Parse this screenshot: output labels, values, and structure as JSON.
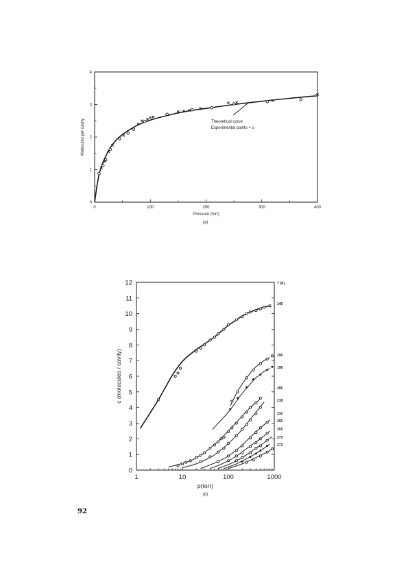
{
  "page": {
    "number": "92"
  },
  "chart_data": [
    {
      "type": "scatter",
      "title": "",
      "xlabel": "Pressure (torr)",
      "ylabel": "Molecules per cavity",
      "caption": "(a)",
      "xlim": [
        0,
        400
      ],
      "ylim": [
        0,
        4
      ],
      "xticks": [
        0,
        100,
        200,
        300,
        400
      ],
      "yticks": [
        0,
        1,
        2,
        3,
        4
      ],
      "legend": {
        "line1": "Theoretical curve",
        "line2": "Experimental points  × o"
      },
      "curve": {
        "x": [
          0,
          5,
          10,
          20,
          30,
          40,
          50,
          60,
          70,
          80,
          100,
          125,
          150,
          175,
          200,
          250,
          300,
          350,
          400
        ],
        "y": [
          0,
          0.58,
          0.98,
          1.42,
          1.72,
          1.93,
          2.08,
          2.2,
          2.3,
          2.39,
          2.52,
          2.64,
          2.74,
          2.82,
          2.88,
          3.0,
          3.1,
          3.19,
          3.27
        ]
      },
      "series": [
        {
          "name": "o",
          "x": [
            8,
            15,
            20,
            28,
            45,
            60,
            70,
            90,
            130,
            175,
            210,
            250,
            310,
            370,
            398
          ],
          "y": [
            0.88,
            1.12,
            1.3,
            1.62,
            1.95,
            2.12,
            2.24,
            2.48,
            2.7,
            2.84,
            2.9,
            3.02,
            3.09,
            3.15,
            3.28
          ]
        },
        {
          "name": "×",
          "x": [
            12,
            18,
            25,
            32,
            52,
            78,
            85,
            95,
            100,
            105,
            150,
            160,
            170,
            190,
            240,
            255,
            320,
            400
          ],
          "y": [
            1.05,
            1.25,
            1.55,
            1.75,
            2.05,
            2.4,
            2.5,
            2.55,
            2.6,
            2.62,
            2.78,
            2.8,
            2.82,
            2.88,
            3.05,
            3.06,
            3.12,
            3.3
          ]
        }
      ]
    },
    {
      "type": "line",
      "title": "",
      "xlabel": "p(torr)",
      "ylabel": "c (molecules / cavity)",
      "caption": "(b)",
      "xscale": "log",
      "xlim": [
        1,
        1000
      ],
      "ylim": [
        0,
        12
      ],
      "xticks": [
        1,
        10,
        100,
        1000
      ],
      "xtick_labels": [
        "1",
        "10",
        "100",
        "1000"
      ],
      "yticks": [
        0,
        1,
        2,
        3,
        4,
        5,
        6,
        7,
        8,
        9,
        10,
        11,
        12
      ],
      "legend_title": "T (K)",
      "series": [
        {
          "name": "145",
          "marker": "o",
          "x": [
            1.2,
            3,
            6,
            10,
            20,
            40,
            60,
            100,
            150,
            200,
            300,
            500,
            800
          ],
          "y": [
            2.65,
            4.5,
            6.05,
            6.95,
            7.7,
            8.3,
            8.7,
            9.25,
            9.6,
            9.85,
            10.1,
            10.35,
            10.5
          ],
          "points_x": [
            3,
            7,
            8,
            9,
            20,
            25,
            30,
            40,
            50,
            60,
            80,
            100,
            150,
            200,
            250,
            300,
            400,
            500,
            600,
            800
          ],
          "points_y": [
            4.5,
            6.0,
            6.2,
            6.5,
            7.6,
            7.8,
            8.0,
            8.3,
            8.5,
            8.7,
            9.0,
            9.3,
            9.6,
            9.8,
            10.0,
            10.1,
            10.2,
            10.3,
            10.4,
            10.5
          ]
        },
        {
          "name": "195",
          "marker": "o",
          "x": [
            110,
            150,
            200,
            300,
            400,
            600,
            800
          ],
          "y": [
            4.1,
            4.9,
            5.5,
            6.2,
            6.6,
            7.0,
            7.2
          ],
          "points_x": [
            120,
            160,
            250,
            350,
            500,
            700,
            900
          ],
          "points_y": [
            4.4,
            5.0,
            5.9,
            6.4,
            6.8,
            7.1,
            7.3
          ]
        },
        {
          "name": "198",
          "marker": "dot",
          "x": [
            45,
            70,
            100,
            150,
            200,
            300,
            400,
            600,
            800
          ],
          "y": [
            2.6,
            3.2,
            3.7,
            4.4,
            4.9,
            5.5,
            5.9,
            6.3,
            6.5
          ],
          "points_x": [
            110,
            160,
            250,
            350,
            500,
            700,
            900
          ],
          "points_y": [
            3.9,
            4.6,
            5.3,
            5.8,
            6.1,
            6.4,
            6.6
          ]
        },
        {
          "name": "206",
          "marker": "o",
          "x": [
            5,
            8,
            15,
            25,
            40,
            60,
            100,
            150,
            200,
            300,
            500
          ],
          "y": [
            0.2,
            0.35,
            0.6,
            0.95,
            1.4,
            1.85,
            2.5,
            3.05,
            3.45,
            4.0,
            4.55
          ],
          "points_x": [
            8,
            10,
            12,
            15,
            20,
            25,
            30,
            40,
            50,
            60,
            70,
            80,
            100,
            120,
            150,
            200,
            250,
            300,
            400,
            500
          ],
          "points_y": [
            0.3,
            0.4,
            0.5,
            0.6,
            0.8,
            0.95,
            1.1,
            1.4,
            1.6,
            1.8,
            2.0,
            2.1,
            2.45,
            2.7,
            3.0,
            3.4,
            3.7,
            4.0,
            4.3,
            4.6
          ]
        },
        {
          "name": "218",
          "marker": "o",
          "x": [
            10,
            20,
            40,
            60,
            100,
            150,
            200,
            300,
            400,
            600
          ],
          "y": [
            0.15,
            0.4,
            0.8,
            1.15,
            1.7,
            2.2,
            2.6,
            3.25,
            3.7,
            4.35
          ],
          "points_x": [
            25,
            40,
            60,
            80,
            100,
            150,
            200,
            250,
            300,
            400,
            500
          ],
          "points_y": [
            0.55,
            0.85,
            1.15,
            1.4,
            1.7,
            2.2,
            2.6,
            2.9,
            3.2,
            3.6,
            4.0
          ]
        },
        {
          "name": "232",
          "marker": "o",
          "x": [
            25,
            50,
            100,
            200,
            300,
            500,
            800
          ],
          "y": [
            0.1,
            0.45,
            0.9,
            1.6,
            2.1,
            2.7,
            3.2
          ],
          "points_x": [
            60,
            100,
            150,
            200,
            300,
            400,
            500,
            700
          ],
          "points_y": [
            0.55,
            0.9,
            1.25,
            1.55,
            2.05,
            2.4,
            2.7,
            3.05
          ]
        },
        {
          "name": "255",
          "marker": "o",
          "x": [
            40,
            80,
            150,
            300,
            500,
            800
          ],
          "y": [
            0.1,
            0.45,
            0.9,
            1.55,
            2.0,
            2.5
          ],
          "points_x": [
            100,
            150,
            200,
            300,
            400,
            500,
            700
          ],
          "points_y": [
            0.6,
            0.9,
            1.1,
            1.5,
            1.75,
            2.0,
            2.35
          ]
        },
        {
          "name": "255",
          "marker": "o",
          "x": [
            60,
            120,
            200,
            400,
            600,
            900
          ],
          "y": [
            0.1,
            0.45,
            0.8,
            1.4,
            1.75,
            2.15
          ],
          "points_x": [
            150,
            200,
            300,
            400,
            500,
            700
          ],
          "points_y": [
            0.6,
            0.8,
            1.1,
            1.4,
            1.55,
            1.9
          ]
        },
        {
          "name": "273",
          "marker": "dot",
          "x": [
            80,
            150,
            300,
            500,
            800
          ],
          "y": [
            0.1,
            0.4,
            0.85,
            1.25,
            1.65
          ],
          "points_x": [
            200,
            300,
            400,
            500,
            700
          ],
          "points_y": [
            0.55,
            0.85,
            1.05,
            1.25,
            1.55
          ]
        },
        {
          "name": "273",
          "marker": "o",
          "x": [
            100,
            200,
            400,
            700,
            1000
          ],
          "y": [
            0.1,
            0.4,
            0.8,
            1.15,
            1.45
          ],
          "points_x": [
            250,
            350,
            500,
            700,
            900
          ],
          "points_y": [
            0.5,
            0.65,
            0.9,
            1.15,
            1.35
          ]
        }
      ]
    }
  ]
}
